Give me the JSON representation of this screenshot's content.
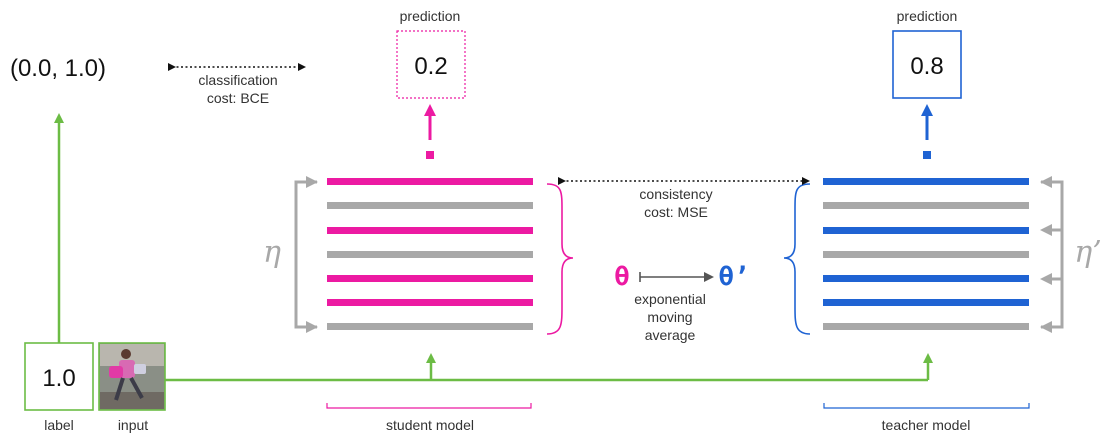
{
  "colors": {
    "student": "#ec1aa2",
    "teacher": "#1f63d3",
    "gray": "#a8a8a8",
    "green": "#6cbc45",
    "text": "#222222",
    "arrow": "#555555"
  },
  "label_value": "(0.0, 1.0)",
  "classification_cost": {
    "line1": "classification",
    "line2": "cost: BCE"
  },
  "student": {
    "prediction_title": "prediction",
    "prediction_value": "0.2",
    "noise_symbol": "η",
    "model_label": "student model",
    "param_symbol": "θ"
  },
  "teacher": {
    "prediction_title": "prediction",
    "prediction_value": "0.8",
    "noise_symbol": "η’",
    "model_label": "teacher model",
    "param_symbol": "θ’"
  },
  "consistency_cost": {
    "line1": "consistency",
    "line2": "cost: MSE"
  },
  "ema": {
    "line1": "exponential",
    "line2": "moving",
    "line3": "average"
  },
  "label_box": {
    "value": "1.0",
    "caption": "label"
  },
  "input_box": {
    "caption": "input",
    "image": "person-walking-photo"
  }
}
